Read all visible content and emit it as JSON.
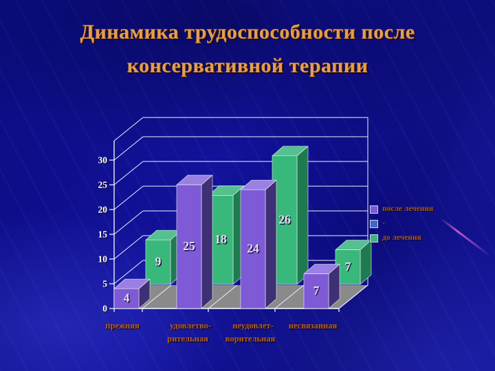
{
  "slide": {
    "title_line1": "Динамика трудоспособности после",
    "title_line2": "консервативной терапии"
  },
  "colors": {
    "title_text": "#e2a04e",
    "axis_line": "#ffffff",
    "grid_line": "#f2f2ff",
    "y_tick_label": "#ffffff",
    "category_label": "#b65c1d",
    "value_label": "#eadcf2",
    "value_label_shadow": "#140f3c",
    "floor": "#8a8a8a",
    "legend_text": "#a9561c",
    "legend_swatch_border": "#c8d4f0",
    "background": "#0d0d85"
  },
  "chart_data": {
    "type": "bar",
    "style": "3d-clustered-column",
    "title": "",
    "xlabel": "",
    "ylabel": "",
    "categories": [
      {
        "line1": "прежняя",
        "line2": ""
      },
      {
        "line1": "удовлетво-",
        "line2": "рительная"
      },
      {
        "line1": "неудовлет-",
        "line2": "ворительная"
      },
      {
        "line1": "несвязанная",
        "line2": ""
      }
    ],
    "series": [
      {
        "name": "после лечения",
        "row": "front",
        "values": [
          4,
          25,
          24,
          7
        ],
        "colors": {
          "front": "#7e5ad6",
          "side": "#3f2f74",
          "top": "#9a80e2"
        }
      },
      {
        "name": "-",
        "row": "legend-only",
        "values": [],
        "colors": {
          "front": "#4466cc",
          "side": "#4466cc",
          "top": "#4466cc"
        }
      },
      {
        "name": "до лечения",
        "row": "back",
        "values": [
          9,
          18,
          26,
          7
        ],
        "colors": {
          "front": "#38b87a",
          "side": "#1f7a50",
          "top": "#55c090"
        }
      }
    ],
    "yticks": [
      0,
      5,
      10,
      15,
      20,
      25,
      30
    ],
    "ylim": [
      0,
      30
    ],
    "grid": true,
    "value_labels": true,
    "legend_position": "right"
  }
}
